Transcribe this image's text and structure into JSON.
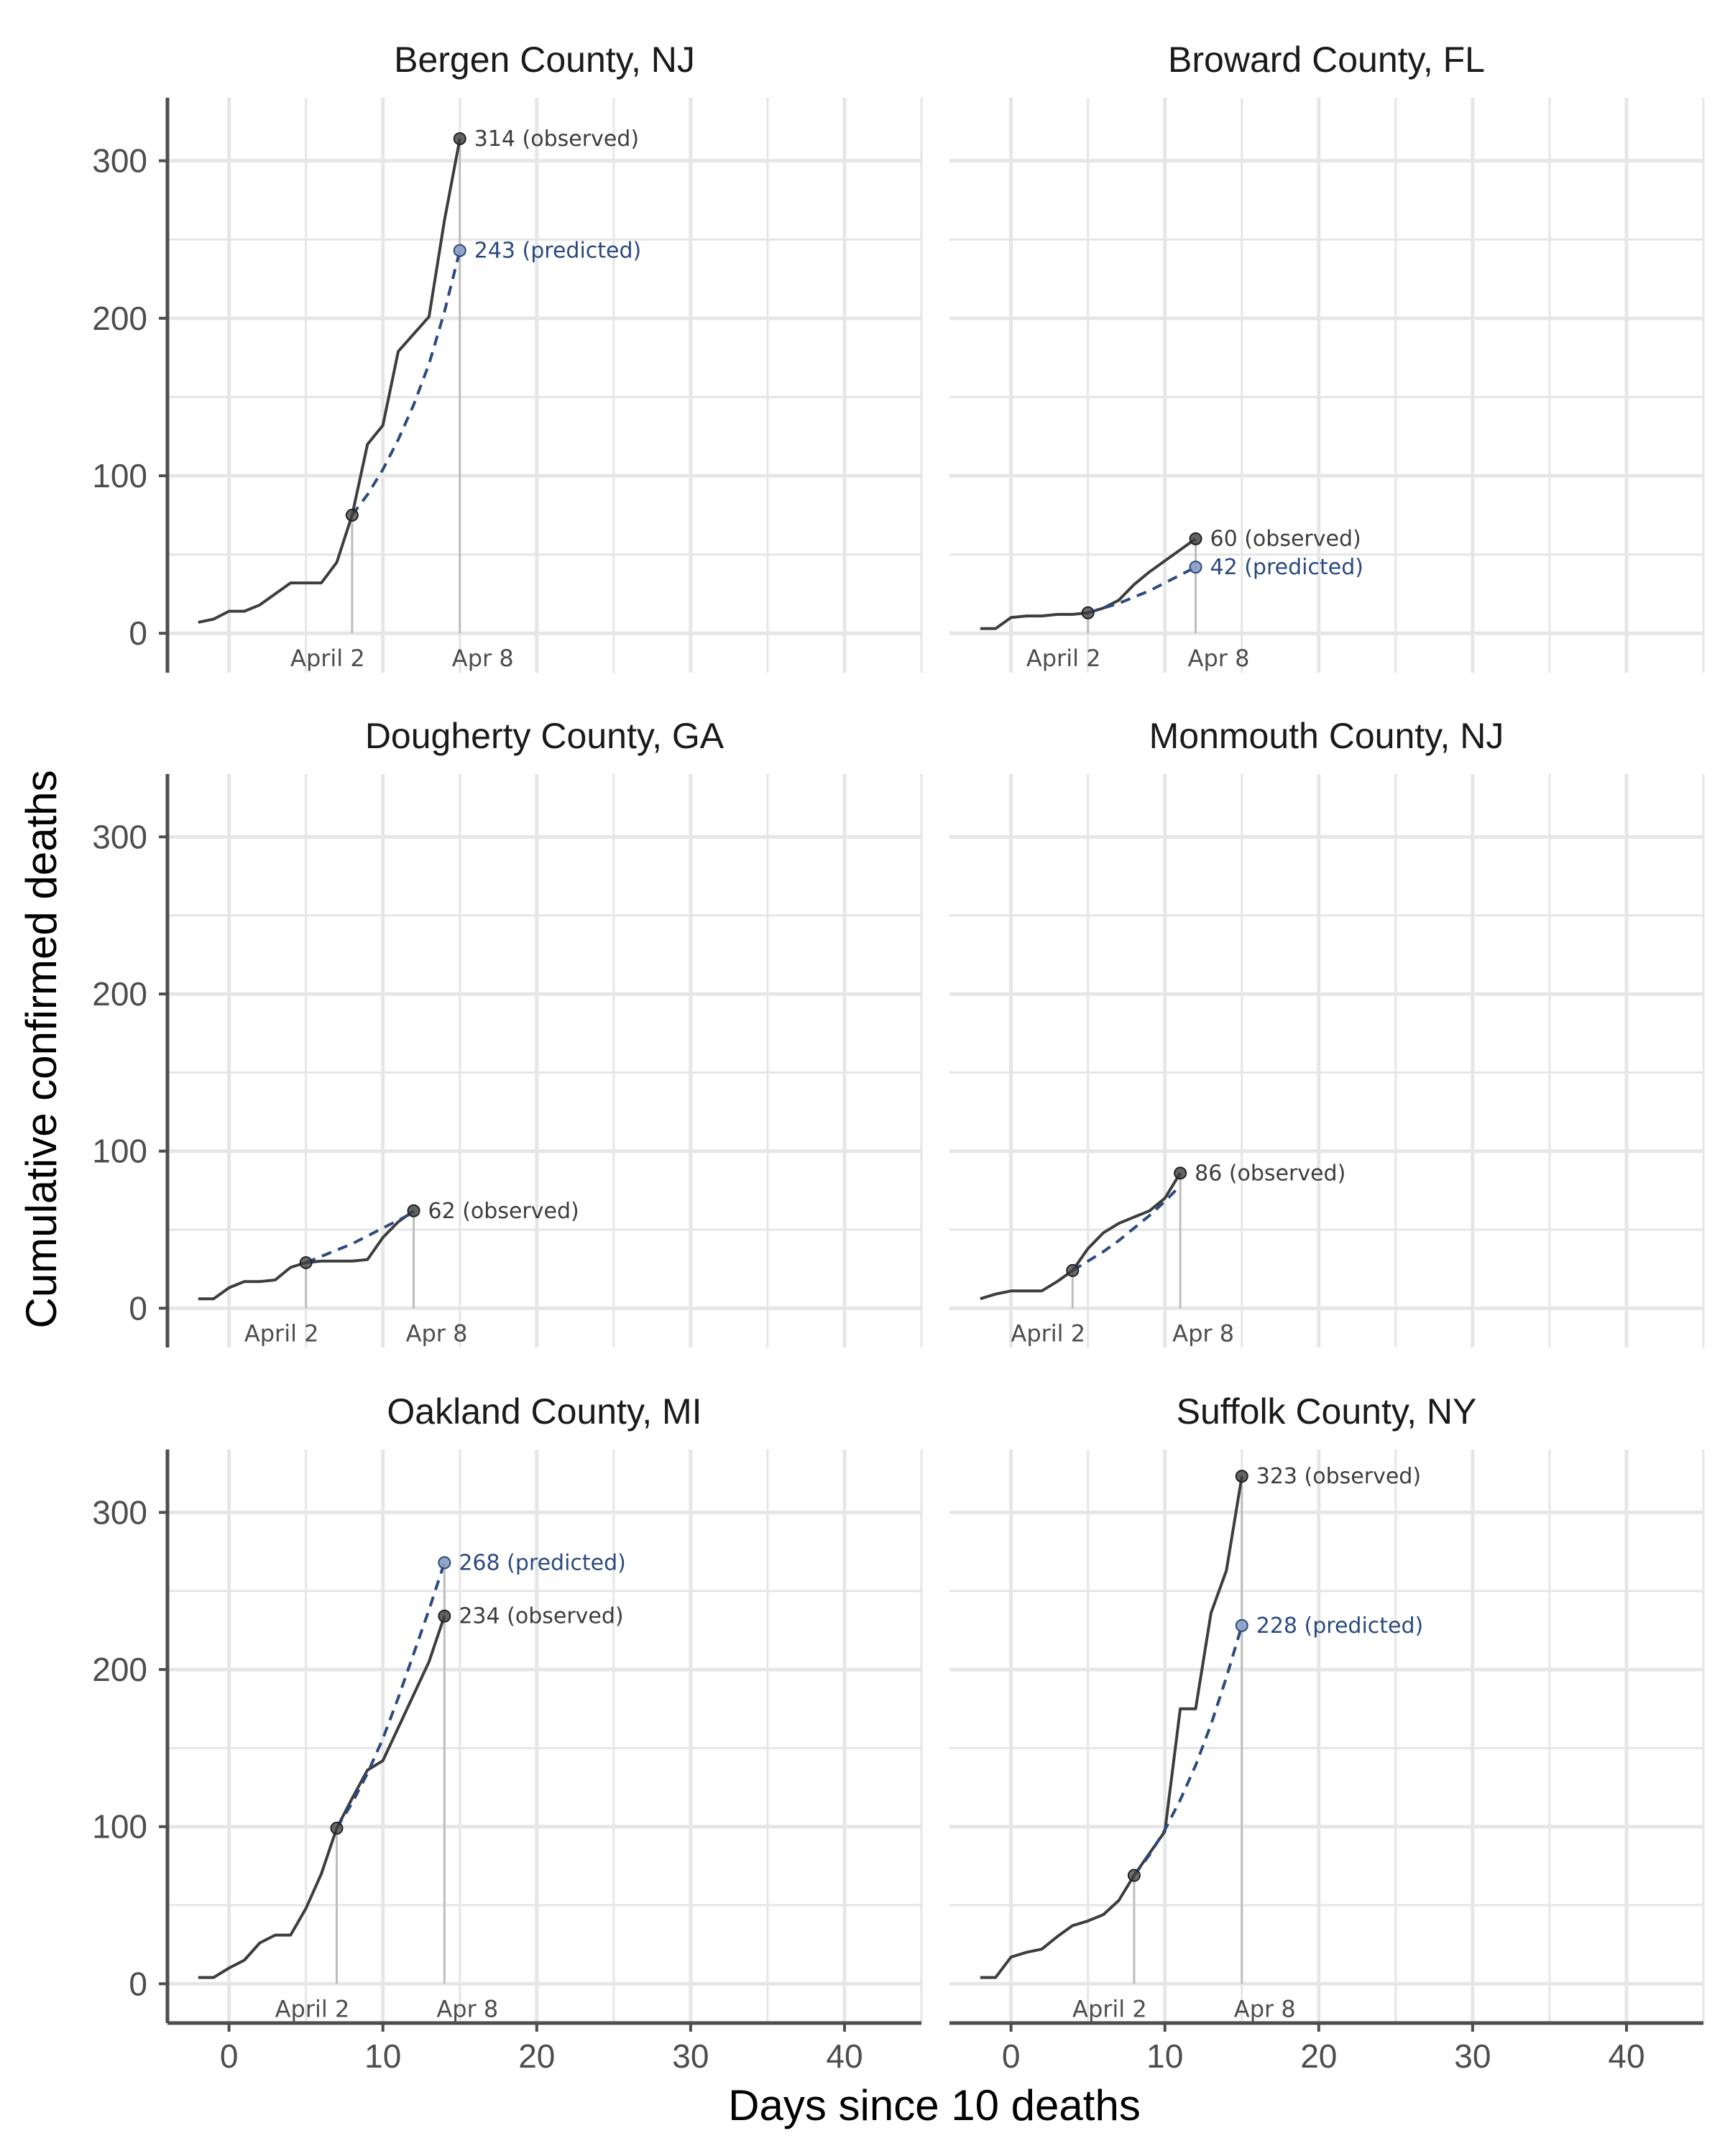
{
  "chart_data": {
    "type": "line",
    "facet_layout": "3x2",
    "xlabel": "Days since 10 deaths",
    "ylabel": "Cumulative confirmed deaths",
    "xlim": [
      -4,
      45
    ],
    "ylim": [
      -25,
      340
    ],
    "x_ticks": [
      0,
      10,
      20,
      30,
      40
    ],
    "x_tick_labels": [
      "0",
      "10",
      "20",
      "30",
      "40"
    ],
    "y_ticks": [
      0,
      100,
      200,
      300
    ],
    "y_tick_labels": [
      "0",
      "100",
      "200",
      "300"
    ],
    "grid": true,
    "colors": {
      "observed": "#3d3d3d",
      "predicted": "#2b4a7e",
      "predicted_point": "#8a9cc0",
      "reference": "#bdbdbd",
      "grid": "#e6e6e6",
      "axis": "#4d4d4d"
    },
    "panels": [
      {
        "title": "Bergen County, NJ",
        "observed": {
          "x": [
            -2,
            -1,
            0,
            1,
            2,
            3,
            4,
            5,
            6,
            7,
            8,
            9,
            10,
            11,
            12,
            13,
            14,
            15
          ],
          "y": [
            7,
            9,
            14,
            14,
            18,
            25,
            32,
            32,
            32,
            45,
            75,
            120,
            132,
            179,
            190,
            201,
            262,
            314
          ]
        },
        "predicted": {
          "x": [
            8,
            9,
            10,
            11,
            12,
            13,
            14,
            15
          ],
          "y": [
            75,
            88,
            104,
            123,
            145,
            171,
            204,
            243
          ]
        },
        "start_point": {
          "x": 8,
          "y": 75,
          "label": "April 2"
        },
        "end_point": {
          "x": 15,
          "label": "Apr 8"
        },
        "annotations": [
          {
            "kind": "observed",
            "x": 15,
            "y": 314,
            "text": "314  (observed)"
          },
          {
            "kind": "predicted",
            "x": 15,
            "y": 243,
            "text": "243 (predicted)"
          }
        ]
      },
      {
        "title": "Broward County, FL",
        "observed": {
          "x": [
            -2,
            -1,
            0,
            1,
            2,
            3,
            4,
            5,
            6,
            7,
            8,
            9,
            10,
            11,
            12
          ],
          "y": [
            3,
            3,
            10,
            11,
            11,
            12,
            12,
            13,
            16,
            21,
            31,
            39,
            46,
            53,
            60
          ]
        },
        "predicted": {
          "x": [
            5,
            6,
            7,
            8,
            9,
            10,
            11,
            12
          ],
          "y": [
            13,
            16,
            19,
            23,
            27,
            32,
            37,
            42
          ]
        },
        "start_point": {
          "x": 5,
          "y": 13,
          "label": "April 2"
        },
        "end_point": {
          "x": 12,
          "label": "Apr 8"
        },
        "annotations": [
          {
            "kind": "observed",
            "x": 12,
            "y": 60,
            "text": "60  (observed)"
          },
          {
            "kind": "predicted",
            "x": 12,
            "y": 42,
            "text": "42 (predicted)"
          }
        ]
      },
      {
        "title": "Dougherty County, GA",
        "observed": {
          "x": [
            -2,
            -1,
            0,
            1,
            2,
            3,
            4,
            5,
            6,
            7,
            8,
            9,
            10,
            11,
            12
          ],
          "y": [
            6,
            6,
            13,
            17,
            17,
            18,
            26,
            29,
            30,
            30,
            30,
            31,
            45,
            55,
            62
          ]
        },
        "predicted": {
          "x": [
            5,
            6,
            7,
            8,
            9,
            10,
            11,
            12
          ],
          "y": [
            29,
            33,
            37,
            41,
            46,
            51,
            56,
            61
          ]
        },
        "start_point": {
          "x": 5,
          "y": 29,
          "label": "April 2"
        },
        "end_point": {
          "x": 12,
          "label": "Apr 8"
        },
        "annotations": [
          {
            "kind": "observed",
            "x": 12,
            "y": 62,
            "text": "62  (observed)"
          }
        ]
      },
      {
        "title": "Monmouth County, NJ",
        "observed": {
          "x": [
            -2,
            -1,
            0,
            1,
            2,
            3,
            4,
            5,
            6,
            7,
            8,
            9,
            10,
            11
          ],
          "y": [
            6,
            9,
            11,
            11,
            11,
            17,
            24,
            38,
            48,
            54,
            58,
            62,
            70,
            86
          ]
        },
        "predicted": {
          "x": [
            4,
            5,
            6,
            7,
            8,
            9,
            10,
            11
          ],
          "y": [
            24,
            30,
            36,
            43,
            51,
            59,
            68,
            78
          ]
        },
        "start_point": {
          "x": 4,
          "y": 24,
          "label": "April 2"
        },
        "end_point": {
          "x": 11,
          "label": "Apr 8"
        },
        "annotations": [
          {
            "kind": "observed",
            "x": 11,
            "y": 86,
            "text": "86  (observed)"
          }
        ]
      },
      {
        "title": "Oakland County, MI",
        "observed": {
          "x": [
            -2,
            -1,
            0,
            1,
            2,
            3,
            4,
            5,
            6,
            7,
            8,
            9,
            10,
            11,
            12,
            13,
            14
          ],
          "y": [
            4,
            4,
            10,
            15,
            26,
            31,
            31,
            48,
            70,
            99,
            118,
            136,
            142,
            163,
            184,
            205,
            234
          ]
        },
        "predicted": {
          "x": [
            7,
            8,
            9,
            10,
            11,
            12,
            13,
            14
          ],
          "y": [
            99,
            115,
            134,
            156,
            182,
            210,
            238,
            268
          ]
        },
        "start_point": {
          "x": 7,
          "y": 99,
          "label": "April 2"
        },
        "end_point": {
          "x": 14,
          "label": "Apr 8"
        },
        "annotations": [
          {
            "kind": "predicted",
            "x": 14,
            "y": 268,
            "text": "268 (predicted)"
          },
          {
            "kind": "observed",
            "x": 14,
            "y": 234,
            "text": "234  (observed)"
          }
        ]
      },
      {
        "title": "Suffolk County, NY",
        "observed": {
          "x": [
            -2,
            -1,
            0,
            1,
            2,
            3,
            4,
            5,
            6,
            7,
            8,
            9,
            10,
            11,
            12,
            13,
            14,
            15
          ],
          "y": [
            4,
            4,
            17,
            20,
            22,
            30,
            37,
            40,
            44,
            53,
            69,
            83,
            97,
            175,
            175,
            236,
            263,
            323
          ]
        },
        "predicted": {
          "x": [
            8,
            9,
            10,
            11,
            12,
            13,
            14,
            15
          ],
          "y": [
            69,
            82,
            98,
            117,
            139,
            165,
            195,
            228
          ]
        },
        "start_point": {
          "x": 8,
          "y": 69,
          "label": "April 2"
        },
        "end_point": {
          "x": 15,
          "label": "Apr 8"
        },
        "annotations": [
          {
            "kind": "observed",
            "x": 15,
            "y": 323,
            "text": "323  (observed)"
          },
          {
            "kind": "predicted",
            "x": 15,
            "y": 228,
            "text": "228 (predicted)"
          }
        ]
      }
    ]
  }
}
